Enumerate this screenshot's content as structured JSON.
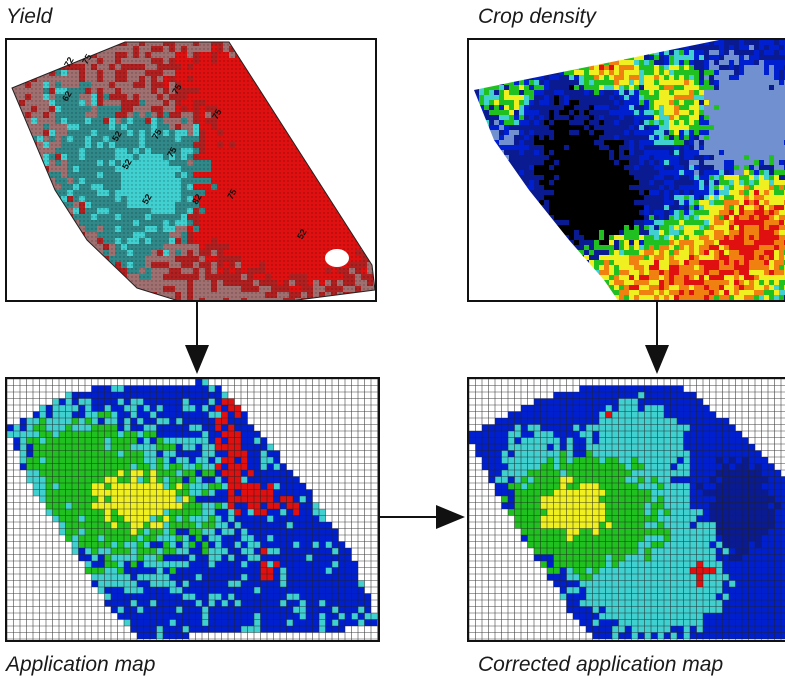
{
  "labels": {
    "yield": "Yield",
    "crop_density": "Crop density",
    "application_map": "Application map",
    "corrected_application_map": "Corrected application map"
  },
  "yield_map": {
    "contour_labels": [
      "72",
      "75",
      "62",
      "75",
      "75",
      "75",
      "52",
      "52",
      "75",
      "52",
      "82",
      "75",
      "52"
    ]
  },
  "colors": {
    "red": "#e01010",
    "dark_red": "#b02020",
    "mauve": "#a07070",
    "cyan": "#40d0d0",
    "teal": "#308888",
    "navy": "#0a1a90",
    "blue": "#0020d0",
    "light_blue": "#7090d0",
    "green": "#20c020",
    "yellow": "#f0f020",
    "orange": "#f08010",
    "black": "#000000"
  }
}
